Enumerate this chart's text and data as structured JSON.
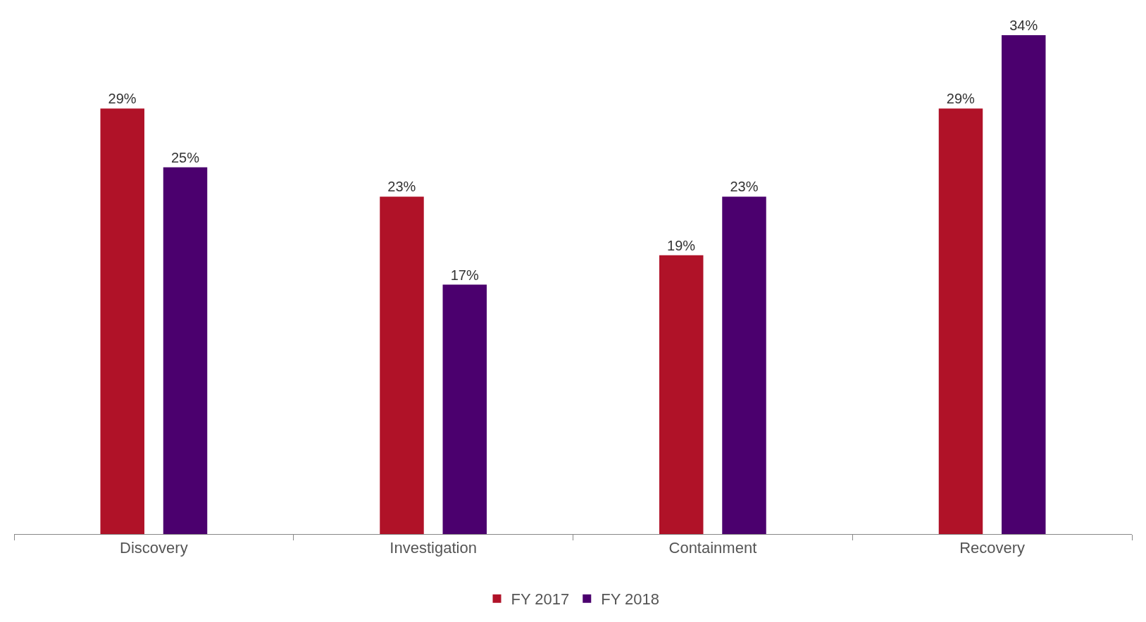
{
  "chart_data": {
    "type": "bar",
    "categories": [
      "Discovery",
      "Investigation",
      "Containment",
      "Recovery"
    ],
    "series": [
      {
        "name": "FY 2017",
        "color": "#b01228",
        "values": [
          29,
          23,
          19,
          29
        ],
        "value_labels": [
          "29%",
          "23%",
          "19%",
          "29%"
        ]
      },
      {
        "name": "FY 2018",
        "color": "#4b006e",
        "values": [
          25,
          17,
          23,
          34
        ],
        "value_labels": [
          "25%",
          "17%",
          "23%",
          "34%"
        ]
      }
    ],
    "legend": "bottom"
  }
}
